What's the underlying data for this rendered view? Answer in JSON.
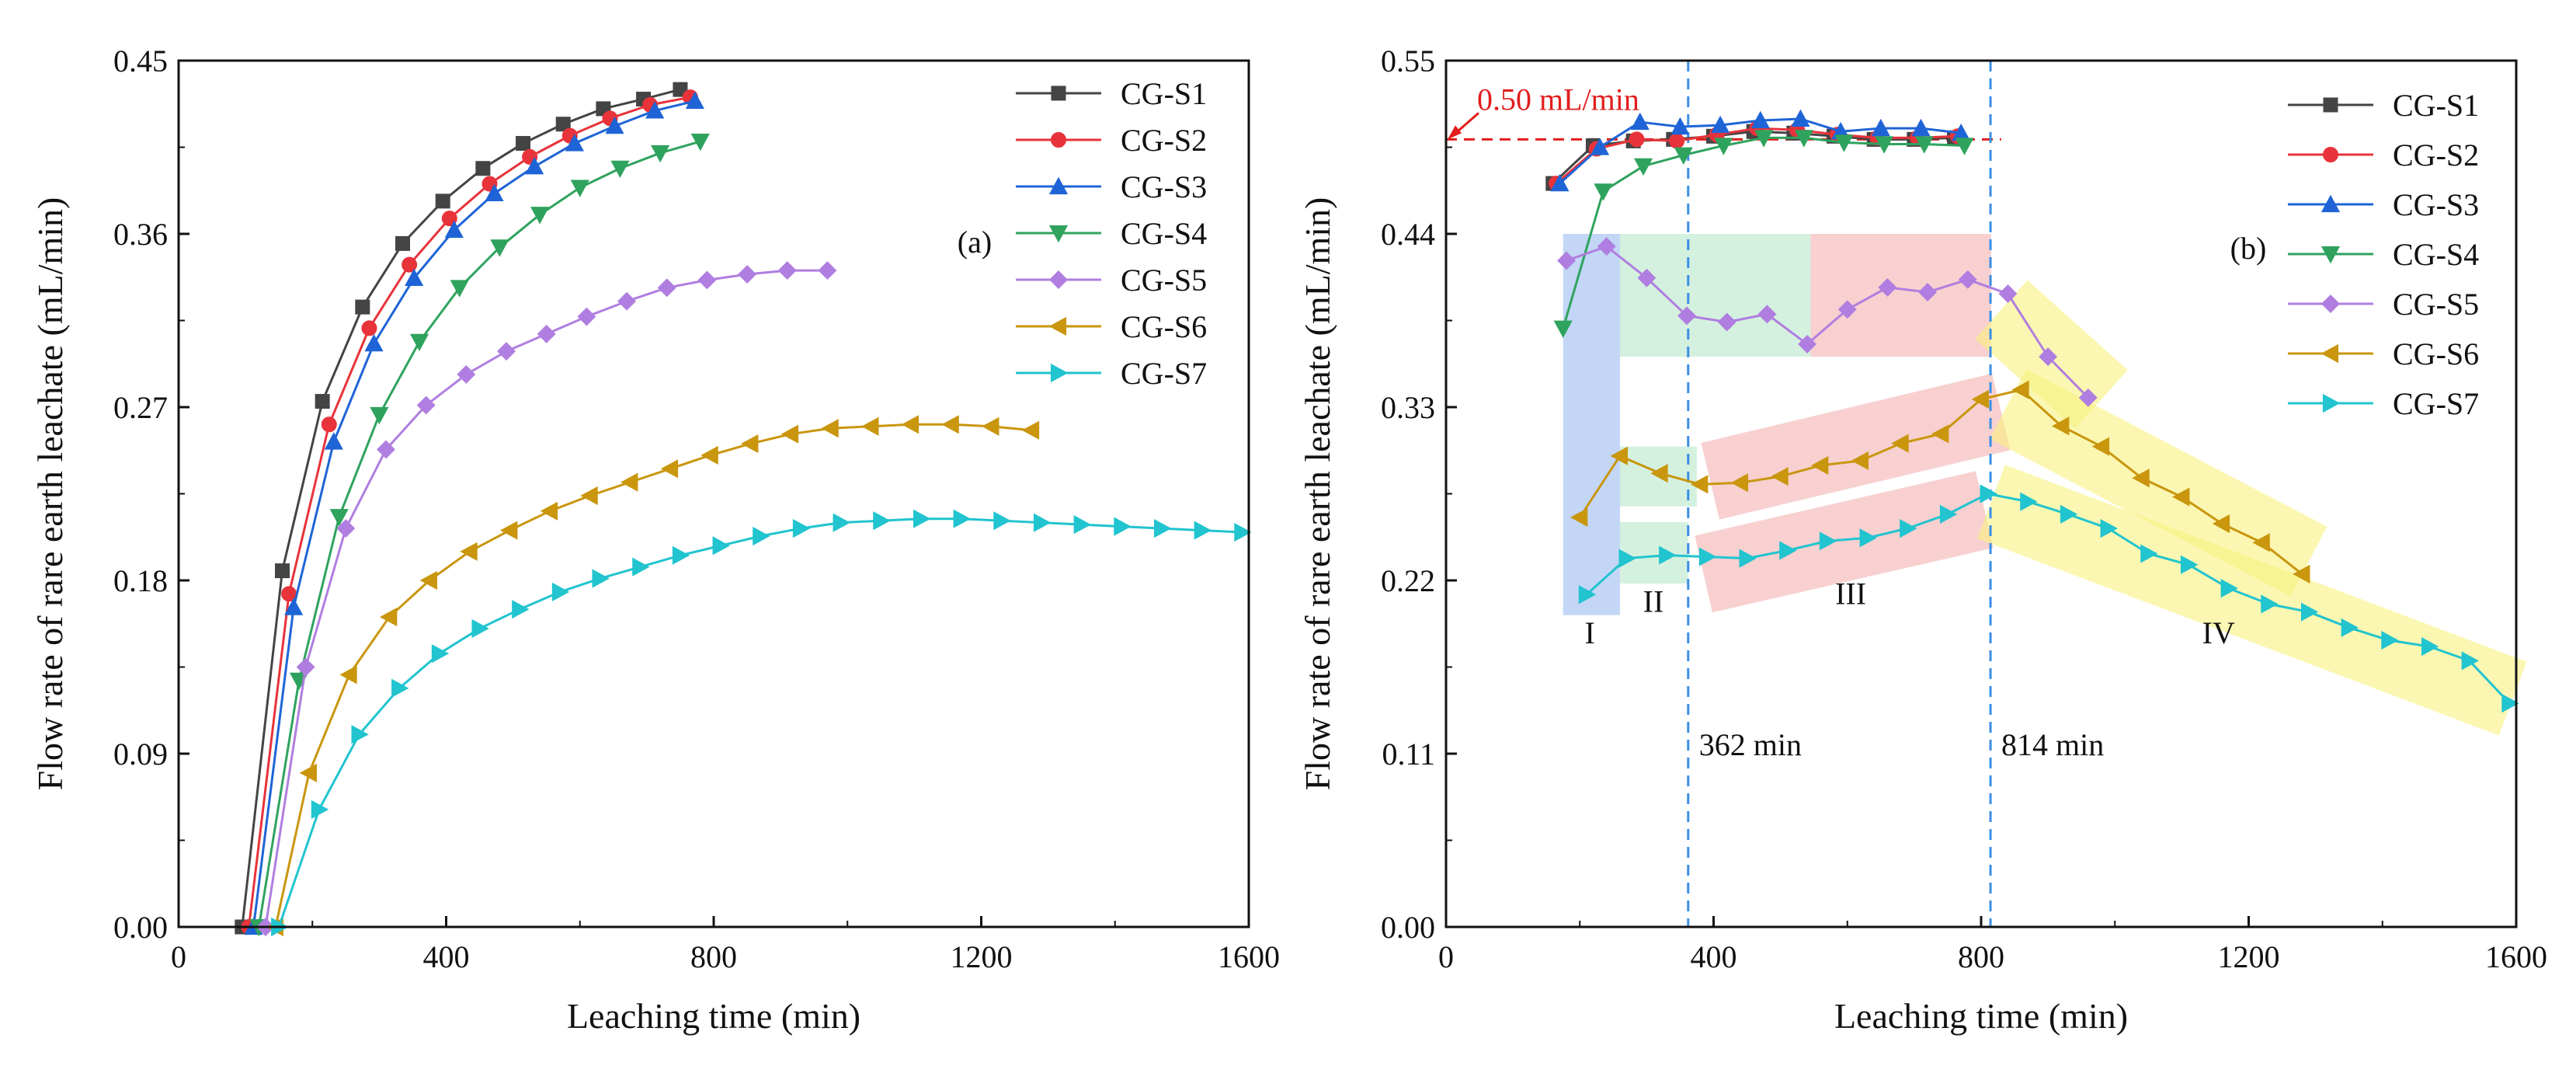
{
  "colors": {
    "CG-S1": "#444444",
    "CG-S2": "#e8333a",
    "CG-S3": "#1f64d6",
    "CG-S4": "#2fa35e",
    "CG-S5": "#b07ee0",
    "CG-S6": "#c9960e",
    "CG-S7": "#21c4cf",
    "refline": "#e11d1d",
    "vline": "#3a8fe6",
    "zone_blue": "#9bbbf0",
    "zone_green": "#b8e8c9",
    "zone_red": "#f4b0b0",
    "zone_yellow": "#f8f27e"
  },
  "chart_data": [
    {
      "type": "line",
      "panel_label": "(a)",
      "xlabel": "Leaching time (min)",
      "ylabel": "Flow rate of rare earth leachate (mL/min)",
      "xlim": [
        0,
        1600
      ],
      "ylim": [
        0,
        0.45
      ],
      "xticks": [
        "0",
        "400",
        "800",
        "1200",
        "1600"
      ],
      "yticks": [
        "0.00",
        "0.09",
        "0.18",
        "0.27",
        "0.36",
        "0.45"
      ],
      "legend": [
        "CG-S1",
        "CG-S2",
        "CG-S3",
        "CG-S4",
        "CG-S5",
        "CG-S6",
        "CG-S7"
      ],
      "legend_position": "top-right",
      "series": [
        {
          "name": "CG-S1",
          "marker": "square",
          "x": [
            95,
            155,
            215,
            275,
            335,
            395,
            455,
            515,
            575,
            635,
            695,
            750
          ],
          "y": [
            0,
            0.185,
            0.273,
            0.322,
            0.355,
            0.377,
            0.394,
            0.407,
            0.417,
            0.425,
            0.43,
            0.435
          ]
        },
        {
          "name": "CG-S2",
          "marker": "circle",
          "x": [
            105,
            165,
            225,
            285,
            345,
            405,
            465,
            525,
            585,
            645,
            705,
            765
          ],
          "y": [
            0,
            0.173,
            0.261,
            0.311,
            0.344,
            0.368,
            0.386,
            0.4,
            0.411,
            0.42,
            0.427,
            0.431
          ]
        },
        {
          "name": "CG-S3",
          "marker": "triangle-up",
          "x": [
            112,
            172,
            232,
            292,
            352,
            412,
            472,
            532,
            592,
            652,
            712,
            772
          ],
          "y": [
            0,
            0.166,
            0.252,
            0.303,
            0.337,
            0.362,
            0.381,
            0.395,
            0.407,
            0.416,
            0.424,
            0.429
          ]
        },
        {
          "name": "CG-S4",
          "marker": "triangle-down",
          "x": [
            120,
            180,
            240,
            300,
            360,
            420,
            480,
            540,
            600,
            660,
            720,
            780
          ],
          "y": [
            0,
            0.128,
            0.213,
            0.266,
            0.304,
            0.332,
            0.353,
            0.37,
            0.384,
            0.394,
            0.402,
            0.408
          ]
        },
        {
          "name": "CG-S5",
          "marker": "diamond",
          "x": [
            130,
            190,
            250,
            310,
            370,
            430,
            490,
            550,
            610,
            670,
            730,
            790,
            850,
            910,
            970
          ],
          "y": [
            0,
            0.135,
            0.207,
            0.248,
            0.271,
            0.287,
            0.299,
            0.308,
            0.317,
            0.325,
            0.332,
            0.336,
            0.339,
            0.341,
            0.341
          ]
        },
        {
          "name": "CG-S6",
          "marker": "triangle-left",
          "x": [
            145,
            195,
            255,
            315,
            375,
            435,
            495,
            555,
            615,
            675,
            735,
            795,
            855,
            915,
            975,
            1035,
            1095,
            1155,
            1215,
            1275
          ],
          "y": [
            0,
            0.08,
            0.131,
            0.161,
            0.18,
            0.195,
            0.206,
            0.216,
            0.224,
            0.231,
            0.238,
            0.245,
            0.251,
            0.256,
            0.259,
            0.26,
            0.261,
            0.261,
            0.26,
            0.258
          ]
        },
        {
          "name": "CG-S7",
          "marker": "triangle-right",
          "x": [
            150,
            210,
            270,
            330,
            390,
            450,
            510,
            570,
            630,
            690,
            750,
            810,
            870,
            930,
            990,
            1050,
            1110,
            1170,
            1230,
            1290,
            1350,
            1410,
            1470,
            1530,
            1590
          ],
          "y": [
            0,
            0.061,
            0.1,
            0.124,
            0.142,
            0.155,
            0.165,
            0.174,
            0.181,
            0.187,
            0.193,
            0.198,
            0.203,
            0.207,
            0.21,
            0.211,
            0.212,
            0.212,
            0.211,
            0.21,
            0.209,
            0.208,
            0.207,
            0.206,
            0.205
          ]
        }
      ]
    },
    {
      "type": "line",
      "panel_label": "(b)",
      "xlabel": "Leaching time (min)",
      "ylabel": "Flow rate of rare earth leachate (mL/min)",
      "xlim": [
        0,
        1600
      ],
      "ylim": [
        0,
        0.55
      ],
      "xticks": [
        "0",
        "400",
        "800",
        "1200",
        "1600"
      ],
      "yticks": [
        "0.00",
        "0.11",
        "0.22",
        "0.33",
        "0.44",
        "0.55"
      ],
      "legend": [
        "CG-S1",
        "CG-S2",
        "CG-S3",
        "CG-S4",
        "CG-S5",
        "CG-S6",
        "CG-S7"
      ],
      "legend_position": "top-right",
      "reference_line": {
        "y": 0.5,
        "label": "0.50 mL/min"
      },
      "vertical_lines": [
        {
          "x": 362,
          "label": "362 min"
        },
        {
          "x": 814,
          "label": "814 min"
        }
      ],
      "stage_labels": [
        {
          "text": "I",
          "x": 215,
          "y": 0.18
        },
        {
          "text": "II",
          "x": 310,
          "y": 0.2
        },
        {
          "text": "III",
          "x": 605,
          "y": 0.205
        },
        {
          "text": "IV",
          "x": 1155,
          "y": 0.18
        }
      ],
      "zones": [
        {
          "color": "zone_blue",
          "x": [
            175,
            260
          ],
          "y": [
            0.198,
            0.44
          ]
        },
        {
          "color": "zone_green",
          "x": [
            260,
            545
          ],
          "y": [
            0.362,
            0.44
          ]
        },
        {
          "color": "zone_red",
          "x": [
            545,
            815
          ],
          "y": [
            0.362,
            0.44
          ]
        },
        {
          "color": "zone_green",
          "x": [
            260,
            375
          ],
          "y": [
            0.267,
            0.305
          ]
        },
        {
          "color": "zone_green",
          "x": [
            260,
            362
          ],
          "y": [
            0.218,
            0.257
          ]
        }
      ],
      "bands": [
        {
          "color": "zone_red",
          "from": [
            395,
            0.283
          ],
          "to": [
            830,
            0.327
          ],
          "half_width": 0.025
        },
        {
          "color": "zone_red",
          "from": [
            385,
            0.224
          ],
          "to": [
            805,
            0.265
          ],
          "half_width": 0.025
        },
        {
          "color": "zone_yellow",
          "from": [
            830,
            0.392
          ],
          "to": [
            980,
            0.335
          ],
          "half_width": 0.025
        },
        {
          "color": "zone_yellow",
          "from": [
            840,
            0.332
          ],
          "to": [
            1290,
            0.232
          ],
          "half_width": 0.025
        },
        {
          "color": "zone_yellow",
          "from": [
            815,
            0.27
          ],
          "to": [
            1595,
            0.145
          ],
          "half_width": 0.025
        }
      ],
      "series": [
        {
          "name": "CG-S1",
          "marker": "square",
          "x": [
            160,
            220,
            280,
            340,
            400,
            460,
            520,
            580,
            640,
            700,
            760
          ],
          "y": [
            0.472,
            0.496,
            0.499,
            0.5,
            0.502,
            0.505,
            0.504,
            0.502,
            0.5,
            0.5,
            0.501
          ]
        },
        {
          "name": "CG-S2",
          "marker": "circle",
          "x": [
            165,
            225,
            285,
            345,
            405,
            465,
            525,
            585,
            645,
            705,
            765
          ],
          "y": [
            0.472,
            0.494,
            0.5,
            0.499,
            0.503,
            0.507,
            0.506,
            0.503,
            0.501,
            0.501,
            0.502
          ]
        },
        {
          "name": "CG-S3",
          "marker": "triangle-up",
          "x": [
            170,
            230,
            290,
            350,
            410,
            470,
            530,
            590,
            650,
            710,
            770
          ],
          "y": [
            0.472,
            0.495,
            0.511,
            0.508,
            0.509,
            0.512,
            0.513,
            0.505,
            0.507,
            0.507,
            0.504
          ]
        },
        {
          "name": "CG-S4",
          "marker": "triangle-down",
          "x": [
            175,
            235,
            295,
            355,
            415,
            475,
            535,
            595,
            655,
            715,
            775
          ],
          "y": [
            0.38,
            0.467,
            0.483,
            0.49,
            0.496,
            0.501,
            0.501,
            0.498,
            0.497,
            0.497,
            0.496
          ]
        },
        {
          "name": "CG-S5",
          "marker": "diamond",
          "x": [
            180,
            240,
            300,
            360,
            420,
            480,
            540,
            600,
            660,
            720,
            780,
            840,
            900,
            960
          ],
          "y": [
            0.423,
            0.432,
            0.412,
            0.388,
            0.384,
            0.389,
            0.37,
            0.392,
            0.406,
            0.403,
            0.411,
            0.402,
            0.362,
            0.336
          ]
        },
        {
          "name": "CG-S6",
          "marker": "triangle-left",
          "x": [
            200,
            260,
            320,
            380,
            440,
            500,
            560,
            620,
            680,
            740,
            800,
            860,
            920,
            980,
            1040,
            1100,
            1160,
            1220,
            1280
          ],
          "y": [
            0.26,
            0.299,
            0.288,
            0.281,
            0.282,
            0.286,
            0.293,
            0.296,
            0.307,
            0.313,
            0.335,
            0.341,
            0.318,
            0.305,
            0.285,
            0.273,
            0.256,
            0.244,
            0.224
          ]
        },
        {
          "name": "CG-S7",
          "marker": "triangle-right",
          "x": [
            210,
            270,
            330,
            390,
            450,
            510,
            570,
            630,
            690,
            750,
            810,
            870,
            930,
            990,
            1050,
            1110,
            1170,
            1230,
            1290,
            1350,
            1410,
            1470,
            1530,
            1590
          ],
          "y": [
            0.211,
            0.234,
            0.236,
            0.235,
            0.234,
            0.239,
            0.245,
            0.247,
            0.253,
            0.262,
            0.275,
            0.27,
            0.262,
            0.253,
            0.237,
            0.23,
            0.215,
            0.205,
            0.2,
            0.19,
            0.182,
            0.178,
            0.169,
            0.142
          ]
        }
      ]
    }
  ]
}
